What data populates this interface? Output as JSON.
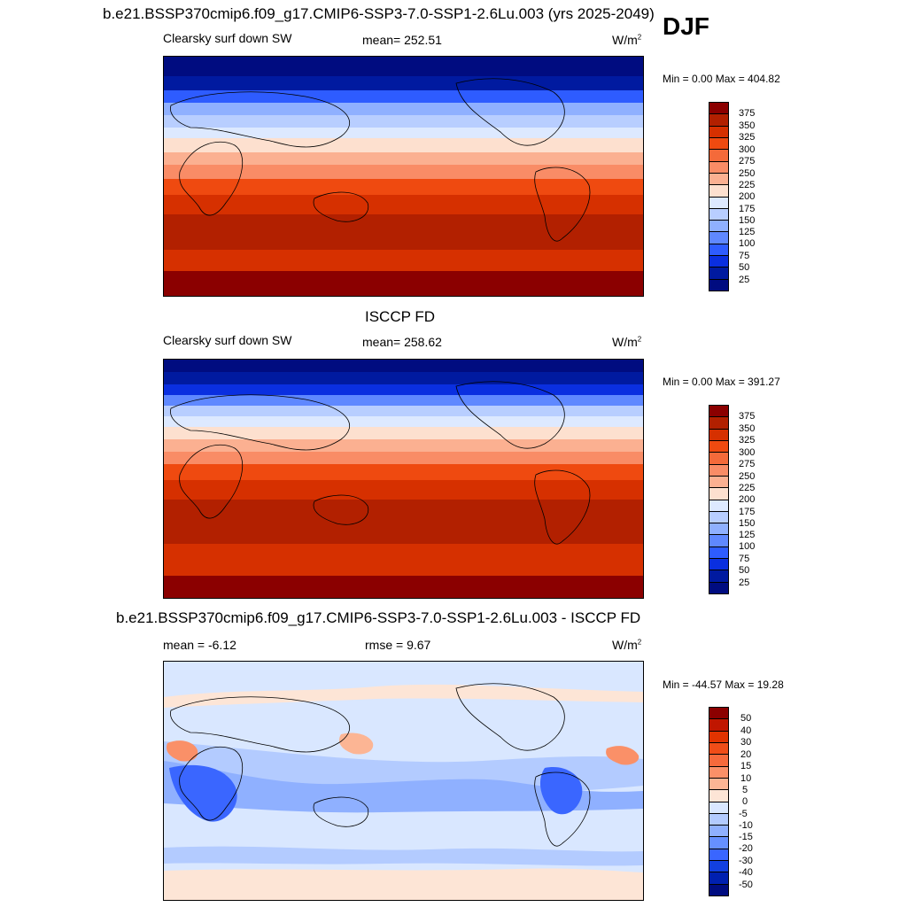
{
  "header": {
    "title": "b.e21.BSSP370cmip6.f09_g17.CMIP6-SSP3-7.0-SSP1-2.6Lu.003 (yrs 2025-2049)",
    "season": "DJF"
  },
  "panels": [
    {
      "id": "model",
      "variable": "Clearsky surf down SW",
      "stat_text": "mean= 252.51",
      "units": "W/m",
      "units_sup": "2",
      "minmax": "Min =   0.00 Max = 404.82",
      "levels": [
        "375",
        "350",
        "325",
        "300",
        "275",
        "250",
        "225",
        "200",
        "175",
        "150",
        "125",
        "100",
        "75",
        "50",
        "25"
      ]
    },
    {
      "id": "obs",
      "title": "ISCCP FD",
      "variable": "Clearsky surf down SW",
      "stat_text": "mean= 258.62",
      "units": "W/m",
      "units_sup": "2",
      "minmax": "Min =   0.00 Max = 391.27",
      "levels": [
        "375",
        "350",
        "325",
        "300",
        "275",
        "250",
        "225",
        "200",
        "175",
        "150",
        "125",
        "100",
        "75",
        "50",
        "25"
      ]
    },
    {
      "id": "diff",
      "title": "b.e21.BSSP370cmip6.f09_g17.CMIP6-SSP3-7.0-SSP1-2.6Lu.003 - ISCCP FD",
      "stat_text": "mean =  -6.12",
      "rmse_text": "rmse =   9.67",
      "units": "W/m",
      "units_sup": "2",
      "minmax": "Min = -44.57 Max =  19.28",
      "levels": [
        "50",
        "40",
        "30",
        "20",
        "15",
        "10",
        "5",
        "0",
        "-5",
        "-10",
        "-15",
        "-20",
        "-30",
        "-40",
        "-50"
      ]
    }
  ],
  "colors": {
    "abs_scale": [
      "#8b0000",
      "#b22000",
      "#d63000",
      "#ef4a10",
      "#f46a3a",
      "#f98c66",
      "#fbb091",
      "#fde0cf",
      "#dde9ff",
      "#b8ceff",
      "#8fb0ff",
      "#5f88ff",
      "#2e5cff",
      "#0a2fe0",
      "#001aa0",
      "#000c80"
    ],
    "diff_scale": [
      "#8b0000",
      "#c01600",
      "#e13300",
      "#f04d18",
      "#f66a3c",
      "#fa9068",
      "#fcb594",
      "#fde5d6",
      "#d9e7ff",
      "#b3cbff",
      "#8fb0ff",
      "#6690ff",
      "#3a66ff",
      "#1240e0",
      "#0020b0",
      "#000c80"
    ]
  }
}
